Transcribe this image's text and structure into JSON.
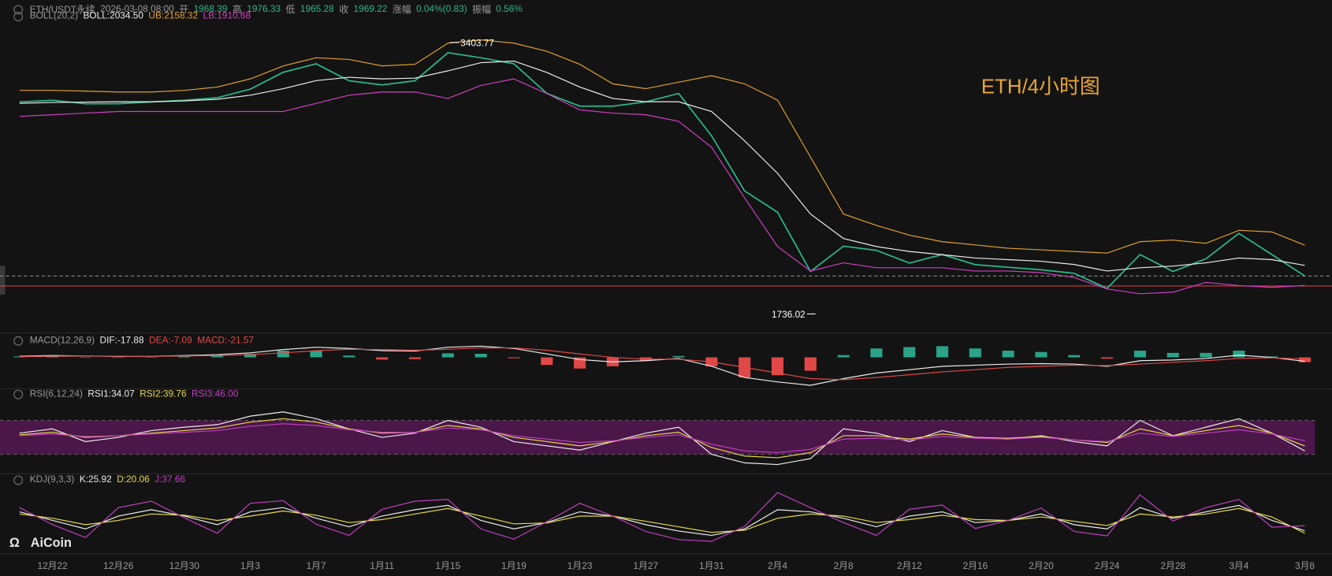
{
  "header": {
    "symbol": "ETH/USDT永续",
    "time": "2026-03-08 08:00",
    "fields": [
      {
        "label": "开",
        "value": "1968.39"
      },
      {
        "label": "高",
        "value": "1976.33"
      },
      {
        "label": "低",
        "value": "1965.28"
      },
      {
        "label": "收",
        "value": "1969.22"
      },
      {
        "label": "涨幅",
        "value": "0.04%(0.83)"
      },
      {
        "label": "振幅",
        "value": "0.56%"
      }
    ]
  },
  "watermark": "AiCoin",
  "chart_data": [
    {
      "type": "line",
      "title": "BOLL(20,2)",
      "annotation": "ETH/4小时图",
      "max_price": 3403.77,
      "min_price": 1736.02,
      "reference_line": {
        "value": 1908,
        "color": "#d83a3a"
      },
      "categories": [
        null,
        "12月22",
        null,
        "12月26",
        null,
        "12月30",
        null,
        "1月3",
        null,
        "1月7",
        null,
        "1月11",
        null,
        "1月15",
        null,
        "1月19",
        null,
        "1月23",
        null,
        "1月27",
        null,
        "1月31",
        null,
        "2月4",
        null,
        "2月8",
        null,
        "2月12",
        null,
        "2月16",
        null,
        "2月20",
        null,
        "2月24",
        null,
        "2月28",
        null,
        "3月4",
        null,
        "3月8"
      ],
      "ylim": [
        1630,
        3665
      ],
      "series": [
        {
          "color": "#2db78a",
          "values": [
            3039,
            3049,
            3028,
            3028,
            3039,
            3049,
            3065,
            3117,
            3221,
            3273,
            3169,
            3143,
            3169,
            3341,
            3310,
            3273,
            3091,
            3013,
            3013,
            3039,
            3091,
            2830,
            2492,
            2361,
            1997,
            2153,
            2127,
            2049,
            2101,
            2039,
            2023,
            2007,
            1986,
            1893,
            2101,
            1997,
            2075,
            2231,
            2101,
            1969
          ]
        },
        {
          "name": "BOLL:2034.50",
          "color": "#ececec",
          "values": [
            3030,
            3035,
            3038,
            3040,
            3040,
            3045,
            3055,
            3080,
            3120,
            3170,
            3190,
            3180,
            3185,
            3230,
            3280,
            3290,
            3220,
            3130,
            3060,
            3040,
            3040,
            2980,
            2800,
            2600,
            2350,
            2200,
            2150,
            2120,
            2100,
            2080,
            2070,
            2060,
            2040,
            2000,
            2020,
            2030,
            2050,
            2080,
            2070,
            2034.5
          ]
        },
        {
          "name": "UB:2158.32",
          "color": "#e0a030",
          "values": [
            3110,
            3110,
            3105,
            3100,
            3100,
            3110,
            3130,
            3180,
            3260,
            3310,
            3300,
            3260,
            3270,
            3400,
            3420,
            3400,
            3350,
            3270,
            3150,
            3120,
            3160,
            3200,
            3150,
            3050,
            2700,
            2350,
            2280,
            2220,
            2180,
            2160,
            2140,
            2130,
            2120,
            2110,
            2180,
            2190,
            2170,
            2250,
            2240,
            2158.32
          ]
        },
        {
          "name": "LB:1910.68",
          "color": "#d040c0",
          "values": [
            2950,
            2960,
            2970,
            2980,
            2980,
            2980,
            2980,
            2980,
            2980,
            3030,
            3080,
            3100,
            3100,
            3060,
            3140,
            3180,
            3090,
            2990,
            2970,
            2960,
            2920,
            2760,
            2450,
            2150,
            2000,
            2050,
            2020,
            2020,
            2020,
            2000,
            2000,
            1990,
            1960,
            1890,
            1860,
            1870,
            1930,
            1910,
            1900,
            1910.68
          ]
        }
      ]
    },
    {
      "type": "bar",
      "title": "MACD(12,26,9)",
      "name": "MACD:-21.57",
      "color": "#e04848",
      "up_color": "#2aa387",
      "values": [
        4,
        6,
        0,
        -2,
        0,
        4,
        8,
        16,
        30,
        30,
        8,
        -10,
        -8,
        18,
        16,
        -4,
        -34,
        -50,
        -40,
        -14,
        6,
        -40,
        -90,
        -80,
        -60,
        10,
        40,
        46,
        50,
        40,
        30,
        24,
        10,
        -6,
        30,
        20,
        20,
        30,
        4,
        -21.57
      ],
      "ylim": [
        -130,
        60
      ],
      "series": [
        {
          "name": "DIF:-17.88",
          "color": "#ececec",
          "values": [
            5,
            8,
            6,
            4,
            5,
            8,
            12,
            20,
            35,
            45,
            40,
            30,
            28,
            45,
            50,
            40,
            15,
            -10,
            -20,
            -15,
            -5,
            -40,
            -90,
            -110,
            -125,
            -95,
            -70,
            -55,
            -40,
            -35,
            -30,
            -28,
            -30,
            -40,
            -15,
            -12,
            -5,
            10,
            0,
            -17.88
          ]
        },
        {
          "name": "DEA:-7.09",
          "color": "#e04848",
          "values": [
            3,
            5,
            6,
            5,
            5,
            6,
            8,
            12,
            20,
            30,
            36,
            35,
            32,
            36,
            42,
            42,
            32,
            15,
            0,
            -8,
            -8,
            -20,
            -45,
            -70,
            -95,
            -100,
            -90,
            -78,
            -65,
            -55,
            -45,
            -40,
            -35,
            -37,
            -30,
            -22,
            -15,
            -5,
            -2,
            -7.09
          ]
        }
      ]
    },
    {
      "type": "line",
      "title": "RSI(6,12,24)",
      "ylim": [
        10,
        95
      ],
      "band": [
        30,
        70
      ],
      "band_color": "#4a1748",
      "series": [
        {
          "name": "RSI1:34.07",
          "color": "#ececec",
          "values": [
            55,
            60,
            45,
            50,
            58,
            62,
            65,
            75,
            80,
            72,
            60,
            50,
            55,
            70,
            62,
            45,
            40,
            35,
            45,
            55,
            62,
            30,
            20,
            18,
            25,
            60,
            55,
            45,
            58,
            50,
            48,
            52,
            45,
            40,
            70,
            52,
            62,
            72,
            55,
            34.07
          ]
        },
        {
          "name": "RSI2:39.76",
          "color": "#e8d84a",
          "values": [
            53,
            56,
            50,
            52,
            55,
            58,
            61,
            68,
            72,
            68,
            60,
            55,
            56,
            64,
            60,
            50,
            45,
            40,
            45,
            52,
            56,
            38,
            28,
            26,
            32,
            52,
            52,
            48,
            54,
            50,
            49,
            51,
            47,
            44,
            60,
            52,
            58,
            64,
            55,
            39.76
          ]
        },
        {
          "name": "RSI3:46.00",
          "color": "#c040c0",
          "values": [
            52,
            54,
            51,
            52,
            54,
            56,
            58,
            63,
            66,
            64,
            59,
            56,
            56,
            61,
            59,
            52,
            48,
            44,
            46,
            50,
            53,
            42,
            34,
            32,
            36,
            48,
            49,
            47,
            51,
            49,
            48,
            50,
            47,
            45,
            55,
            51,
            55,
            59,
            54,
            46
          ]
        }
      ]
    },
    {
      "type": "line",
      "title": "KDJ(9,3,3)",
      "ylim": [
        -20,
        125
      ],
      "series": [
        {
          "name": "K:25.92",
          "color": "#ececec",
          "values": [
            70,
            50,
            30,
            60,
            75,
            60,
            40,
            70,
            80,
            55,
            35,
            60,
            75,
            85,
            50,
            30,
            45,
            70,
            60,
            40,
            25,
            15,
            30,
            75,
            70,
            55,
            35,
            60,
            70,
            45,
            50,
            65,
            40,
            30,
            80,
            55,
            70,
            85,
            50,
            25.92
          ]
        },
        {
          "name": "D:20.06",
          "color": "#e8d84a",
          "values": [
            65,
            55,
            40,
            50,
            65,
            62,
            50,
            60,
            72,
            62,
            45,
            52,
            65,
            78,
            60,
            42,
            44,
            60,
            60,
            48,
            35,
            22,
            27,
            55,
            65,
            60,
            45,
            52,
            62,
            52,
            50,
            58,
            48,
            38,
            65,
            58,
            65,
            78,
            58,
            20.06
          ]
        },
        {
          "name": "J:37.66",
          "color": "#c040c0",
          "values": [
            80,
            40,
            10,
            80,
            95,
            56,
            20,
            90,
            96,
            41,
            15,
            76,
            95,
            99,
            30,
            6,
            47,
            90,
            60,
            24,
            5,
            1,
            36,
            115,
            80,
            45,
            15,
            76,
            86,
            31,
            50,
            79,
            24,
            14,
            110,
            49,
            80,
            99,
            34,
            37.66
          ]
        }
      ]
    }
  ]
}
